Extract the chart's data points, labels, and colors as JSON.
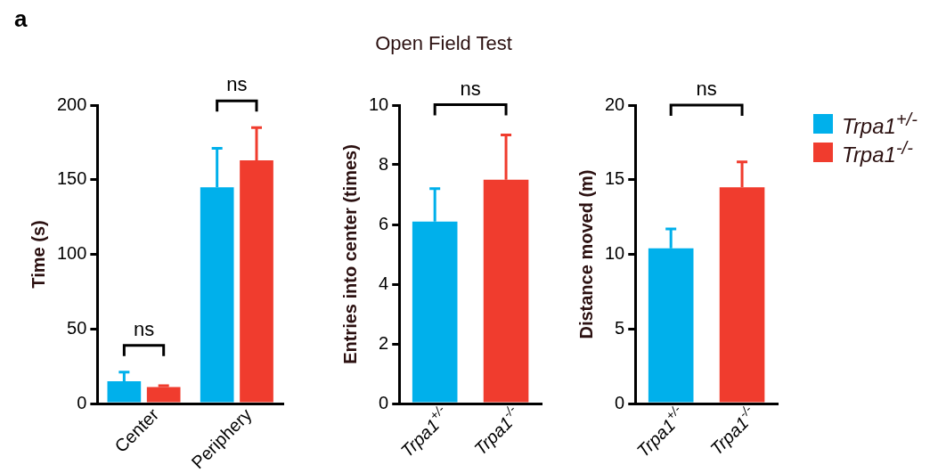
{
  "chart_data": [
    {
      "type": "bar",
      "ylabel": "Time (s)",
      "categories": [
        "Center",
        "Periphery"
      ],
      "ylim": [
        0,
        200
      ],
      "yticks": [
        0,
        50,
        100,
        150,
        200
      ],
      "legend": "right",
      "grid": false,
      "series": [
        {
          "name": "Trpa1$^{+/-}$",
          "color": "#00b0eb",
          "values": [
            15,
            145
          ],
          "errors": [
            [
              15,
              21
            ],
            [
              145,
              171
            ]
          ]
        },
        {
          "name": "Trpa1$^{-/-}$",
          "color": "#f03c2e",
          "values": [
            11,
            163
          ],
          "errors": [
            [
              11,
              12
            ],
            [
              163,
              185
            ]
          ]
        }
      ],
      "annotations": [
        "a",
        "ns",
        "ns"
      ]
    },
    {
      "type": "bar",
      "title": "Open Field Test",
      "ylabel": "Entries into center (times)",
      "categories": [
        "Trpa1$^{+/-}$",
        "Trpa1$^{-/-}$"
      ],
      "ylim": [
        0,
        10
      ],
      "yticks": [
        0,
        2,
        4,
        6,
        8,
        10
      ],
      "grid": false,
      "values": [
        6.1,
        7.5
      ],
      "colors": [
        "#00b0eb",
        "#f03c2e"
      ],
      "errors": [
        [
          6.1,
          7.2
        ],
        [
          7.5,
          9.0
        ]
      ],
      "annotations": [
        "ns"
      ]
    },
    {
      "type": "bar",
      "ylabel": "Distance moved (m)",
      "categories": [
        "Trpa1$^{+/-}$",
        "Trpa1$^{-/-}$"
      ],
      "ylim": [
        0,
        20
      ],
      "yticks": [
        0,
        5,
        10,
        15,
        20
      ],
      "grid": false,
      "values": [
        10.4,
        14.5
      ],
      "colors": [
        "#00b0eb",
        "#f03c2e"
      ],
      "errors": [
        [
          10.4,
          11.7
        ],
        [
          14.5,
          16.2
        ]
      ],
      "annotations": [
        "ns"
      ]
    }
  ]
}
